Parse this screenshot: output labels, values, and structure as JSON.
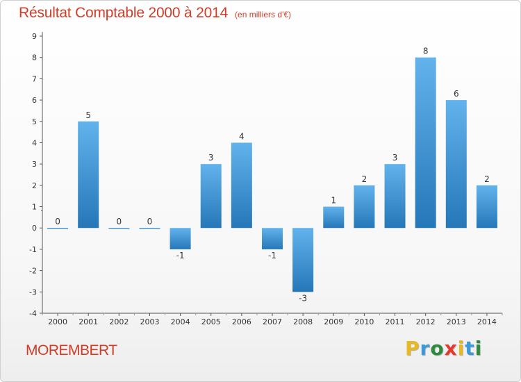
{
  "header": {
    "title": "Résultat Comptable 2000 à 2014",
    "unit": "(en milliers d'€)"
  },
  "footer": {
    "place": "MOREMBERT",
    "brand_letters": [
      {
        "char": "P",
        "color": "#e8b820"
      },
      {
        "char": "r",
        "color": "#3a9ad9"
      },
      {
        "char": "o",
        "color": "#2e8b3e"
      },
      {
        "char": "x",
        "color": "#e23b2e"
      },
      {
        "char": "i",
        "color": "#e8b820"
      },
      {
        "char": "t",
        "color": "#3a9ad9"
      },
      {
        "char": "i",
        "color": "#2e8b3e"
      }
    ]
  },
  "chart_data": {
    "type": "bar",
    "title": "Résultat Comptable 2000 à 2014",
    "subtitle": "(en milliers d'€)",
    "xlabel": "",
    "ylabel": "",
    "categories": [
      "2000",
      "2001",
      "2002",
      "2003",
      "2004",
      "2005",
      "2006",
      "2007",
      "2008",
      "2009",
      "2010",
      "2011",
      "2012",
      "2013",
      "2014"
    ],
    "values": [
      0,
      5,
      0,
      0,
      -1,
      3,
      4,
      -1,
      -3,
      1,
      2,
      3,
      8,
      6,
      2
    ],
    "value_labels": [
      "0",
      "5",
      "0",
      "0",
      "-1",
      "3",
      "4",
      "-1",
      "-3",
      "1",
      "2",
      "3",
      "8",
      "6",
      "2"
    ],
    "ylim": [
      -4,
      9
    ],
    "yticks": [
      -4,
      -3,
      -2,
      -1,
      0,
      1,
      2,
      3,
      4,
      5,
      6,
      7,
      8,
      9
    ],
    "grid": false,
    "legend": "none",
    "colors": {
      "bar_light": "#62b2ec",
      "bar_dark": "#2677b8",
      "axis": "#555555",
      "title": "#d23c27",
      "label": "#333333"
    }
  }
}
